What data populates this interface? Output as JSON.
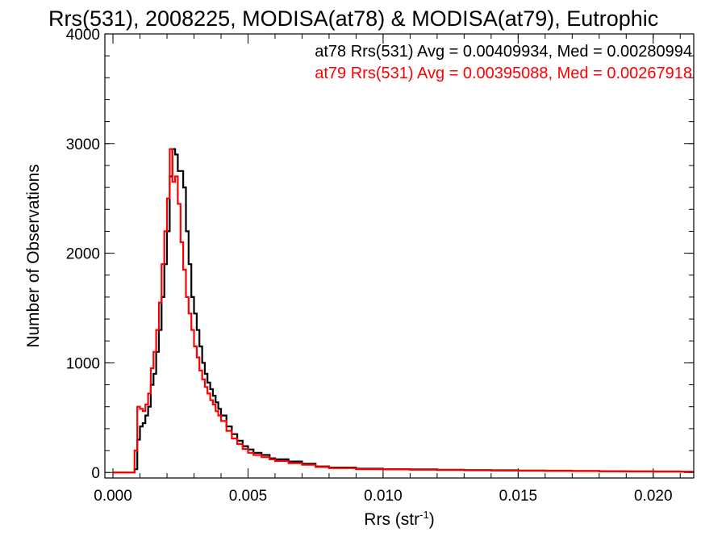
{
  "chart_data": {
    "type": "line",
    "title": "Rrs(531), 2008225, MODISA(at78) & MODISA(at79), Eutrophic",
    "xlabel": "Rrs (str",
    "xlabel_sup": "-1",
    "xlabel_close": ")",
    "ylabel": "Number of Observations",
    "xlim": [
      -0.0003,
      0.0215
    ],
    "ylim": [
      -50,
      4000
    ],
    "x_ticks": [
      0.0,
      0.005,
      0.01,
      0.015,
      0.02
    ],
    "x_tick_labels": [
      "0.000",
      "0.005",
      "0.010",
      "0.015",
      "0.020"
    ],
    "y_ticks": [
      0,
      1000,
      2000,
      3000,
      4000
    ],
    "y_tick_labels": [
      "0",
      "1000",
      "2000",
      "3000",
      "4000"
    ],
    "grid": false,
    "step_style": "histogram",
    "series": [
      {
        "name": "at78",
        "color": "#000000",
        "stats_text": "at78 Rrs(531) Avg = 0.00409934, Med = 0.00280994",
        "x": [
          0.0,
          0.0006,
          0.0008,
          0.0009,
          0.001,
          0.0011,
          0.0012,
          0.0013,
          0.0014,
          0.0015,
          0.0016,
          0.0017,
          0.0018,
          0.0019,
          0.002,
          0.0021,
          0.0022,
          0.0023,
          0.0024,
          0.0025,
          0.0026,
          0.0027,
          0.0028,
          0.0029,
          0.003,
          0.0031,
          0.0032,
          0.0033,
          0.0034,
          0.0035,
          0.0036,
          0.0037,
          0.0038,
          0.0039,
          0.004,
          0.0042,
          0.0044,
          0.0046,
          0.0048,
          0.005,
          0.0052,
          0.0055,
          0.0058,
          0.006,
          0.0065,
          0.007,
          0.0075,
          0.008,
          0.009,
          0.01,
          0.011,
          0.012,
          0.013,
          0.014,
          0.015,
          0.016,
          0.017,
          0.018,
          0.019,
          0.02,
          0.021,
          0.0215
        ],
        "y": [
          0,
          0,
          30,
          300,
          420,
          450,
          520,
          600,
          800,
          900,
          1100,
          1300,
          1600,
          1900,
          2200,
          2700,
          2950,
          2900,
          2750,
          2750,
          2600,
          2200,
          1900,
          1600,
          1450,
          1300,
          1150,
          1000,
          900,
          820,
          760,
          700,
          640,
          580,
          520,
          420,
          350,
          290,
          240,
          210,
          180,
          160,
          130,
          120,
          100,
          80,
          55,
          45,
          35,
          30,
          28,
          25,
          22,
          20,
          18,
          16,
          14,
          12,
          10,
          9,
          8,
          8
        ]
      },
      {
        "name": "at79",
        "color": "#ff0000",
        "stats_text": "at79 Rrs(531) Avg = 0.00395088, Med = 0.00267918",
        "x": [
          0.0,
          0.0006,
          0.0008,
          0.0009,
          0.001,
          0.0011,
          0.0012,
          0.0013,
          0.0014,
          0.0015,
          0.0016,
          0.0017,
          0.0018,
          0.0019,
          0.002,
          0.0021,
          0.0022,
          0.0023,
          0.0024,
          0.0025,
          0.0026,
          0.0027,
          0.0028,
          0.0029,
          0.003,
          0.0031,
          0.0032,
          0.0033,
          0.0034,
          0.0035,
          0.0036,
          0.0037,
          0.0038,
          0.0039,
          0.004,
          0.0042,
          0.0044,
          0.0046,
          0.0048,
          0.005,
          0.0052,
          0.0055,
          0.0058,
          0.006,
          0.0065,
          0.007,
          0.0075,
          0.008,
          0.009,
          0.01,
          0.011,
          0.012,
          0.013,
          0.014,
          0.015,
          0.016,
          0.017,
          0.018,
          0.019,
          0.02,
          0.021,
          0.0215
        ],
        "y": [
          0,
          0,
          200,
          600,
          580,
          560,
          620,
          720,
          950,
          1100,
          1300,
          1550,
          1900,
          2200,
          2500,
          2950,
          2650,
          2700,
          2450,
          2100,
          1850,
          1600,
          1450,
          1300,
          1150,
          1050,
          930,
          850,
          780,
          720,
          660,
          620,
          560,
          520,
          470,
          380,
          310,
          260,
          215,
          180,
          160,
          140,
          120,
          105,
          85,
          70,
          50,
          40,
          30,
          28,
          25,
          22,
          20,
          18,
          16,
          15,
          13,
          11,
          10,
          9,
          8,
          8
        ]
      }
    ]
  }
}
